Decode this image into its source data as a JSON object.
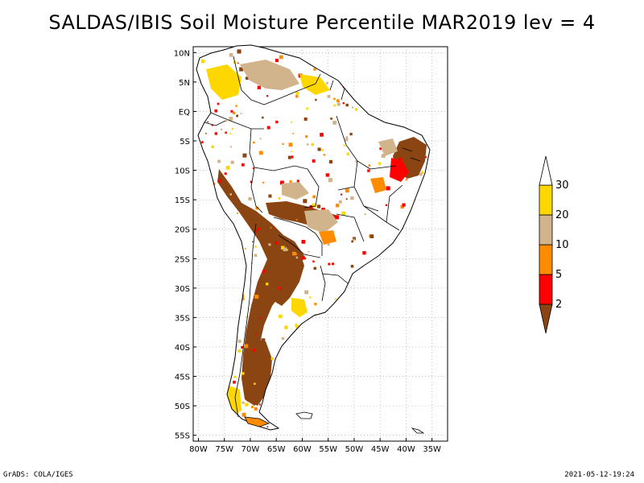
{
  "title": "SALDAS/IBIS Soil Moisture Percentile MAR2019 lev = 4",
  "footer": {
    "left": "GrADS: COLA/IGES",
    "right": "2021-05-12-19:24"
  },
  "map": {
    "lat_range": [
      -56,
      11
    ],
    "lon_range": [
      -81,
      -32
    ],
    "lat_ticks": [
      "10N",
      "5N",
      "EQ",
      "5S",
      "10S",
      "15S",
      "20S",
      "25S",
      "30S",
      "35S",
      "40S",
      "45S",
      "50S",
      "55S"
    ],
    "lon_ticks": [
      "80W",
      "75W",
      "70W",
      "65W",
      "60W",
      "55W",
      "50W",
      "45W",
      "40W",
      "35W"
    ],
    "grid": "dotted"
  },
  "colorbar": {
    "levels": [
      "2",
      "5",
      "10",
      "20",
      "30"
    ],
    "colors": [
      "#8b4513",
      "#ff0000",
      "#ff8c00",
      "#d2b48c",
      "#ffd700",
      "#ffffff"
    ]
  },
  "colors": {
    "very_dry": "#8b4513",
    "dry": "#ff0000",
    "moderate": "#ff8c00",
    "slightly_dry": "#d2b48c",
    "near_normal": "#ffd700"
  }
}
